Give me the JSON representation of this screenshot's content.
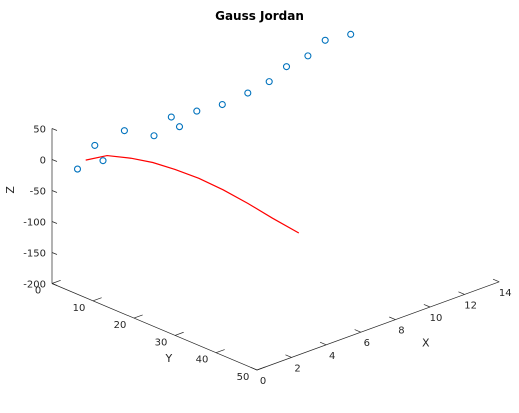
{
  "chart_data": {
    "type": "scatter",
    "title": "Gauss Jordan",
    "xlabel": "X",
    "ylabel": "Y",
    "zlabel": "Z",
    "xlim": [
      0,
      14
    ],
    "ylim": [
      0,
      50
    ],
    "zlim": [
      -200,
      50
    ],
    "xticks": [
      0,
      2,
      4,
      6,
      8,
      10,
      12,
      14
    ],
    "yticks": [
      0,
      10,
      20,
      30,
      40,
      50
    ],
    "zticks": [
      -200,
      -150,
      -100,
      -50,
      0,
      50
    ],
    "grid": false,
    "scatter": {
      "name": "",
      "color": "#0072BD",
      "marker": "circle-open",
      "points": [
        {
          "x": 1,
          "y": 2,
          "z": -20
        },
        {
          "x": 2,
          "y": 4,
          "z": -11
        },
        {
          "x": 2,
          "y": 2,
          "z": 8
        },
        {
          "x": 3,
          "y": 5,
          "z": 30
        },
        {
          "x": 4,
          "y": 8,
          "z": 20
        },
        {
          "x": 5,
          "y": 10,
          "z": 30
        },
        {
          "x": 5,
          "y": 8,
          "z": 40
        },
        {
          "x": 6,
          "y": 10,
          "z": 45
        },
        {
          "x": 7,
          "y": 12,
          "z": 51
        },
        {
          "x": 8,
          "y": 14,
          "z": 65
        },
        {
          "x": 9,
          "y": 15,
          "z": 76
        },
        {
          "x": 10,
          "y": 15,
          "z": 90
        },
        {
          "x": 11,
          "y": 16,
          "z": 100
        },
        {
          "x": 12,
          "y": 16,
          "z": 115
        },
        {
          "x": 13,
          "y": 18,
          "z": 120
        }
      ]
    },
    "curve": {
      "name": "",
      "color": "#FF0000",
      "points": [
        {
          "x": 1,
          "y": 4,
          "z": 0
        },
        {
          "x": 2,
          "y": 5,
          "z": 0
        },
        {
          "x": 3,
          "y": 6.6,
          "z": -10
        },
        {
          "x": 4,
          "y": 7.7,
          "z": -24
        },
        {
          "x": 5,
          "y": 8.9,
          "z": -42
        },
        {
          "x": 6,
          "y": 10.5,
          "z": -62
        },
        {
          "x": 7,
          "y": 12.2,
          "z": -86
        },
        {
          "x": 8,
          "y": 14,
          "z": -113
        },
        {
          "x": 9,
          "y": 15.8,
          "z": -142
        },
        {
          "x": 10,
          "y": 18,
          "z": -170
        }
      ]
    }
  }
}
